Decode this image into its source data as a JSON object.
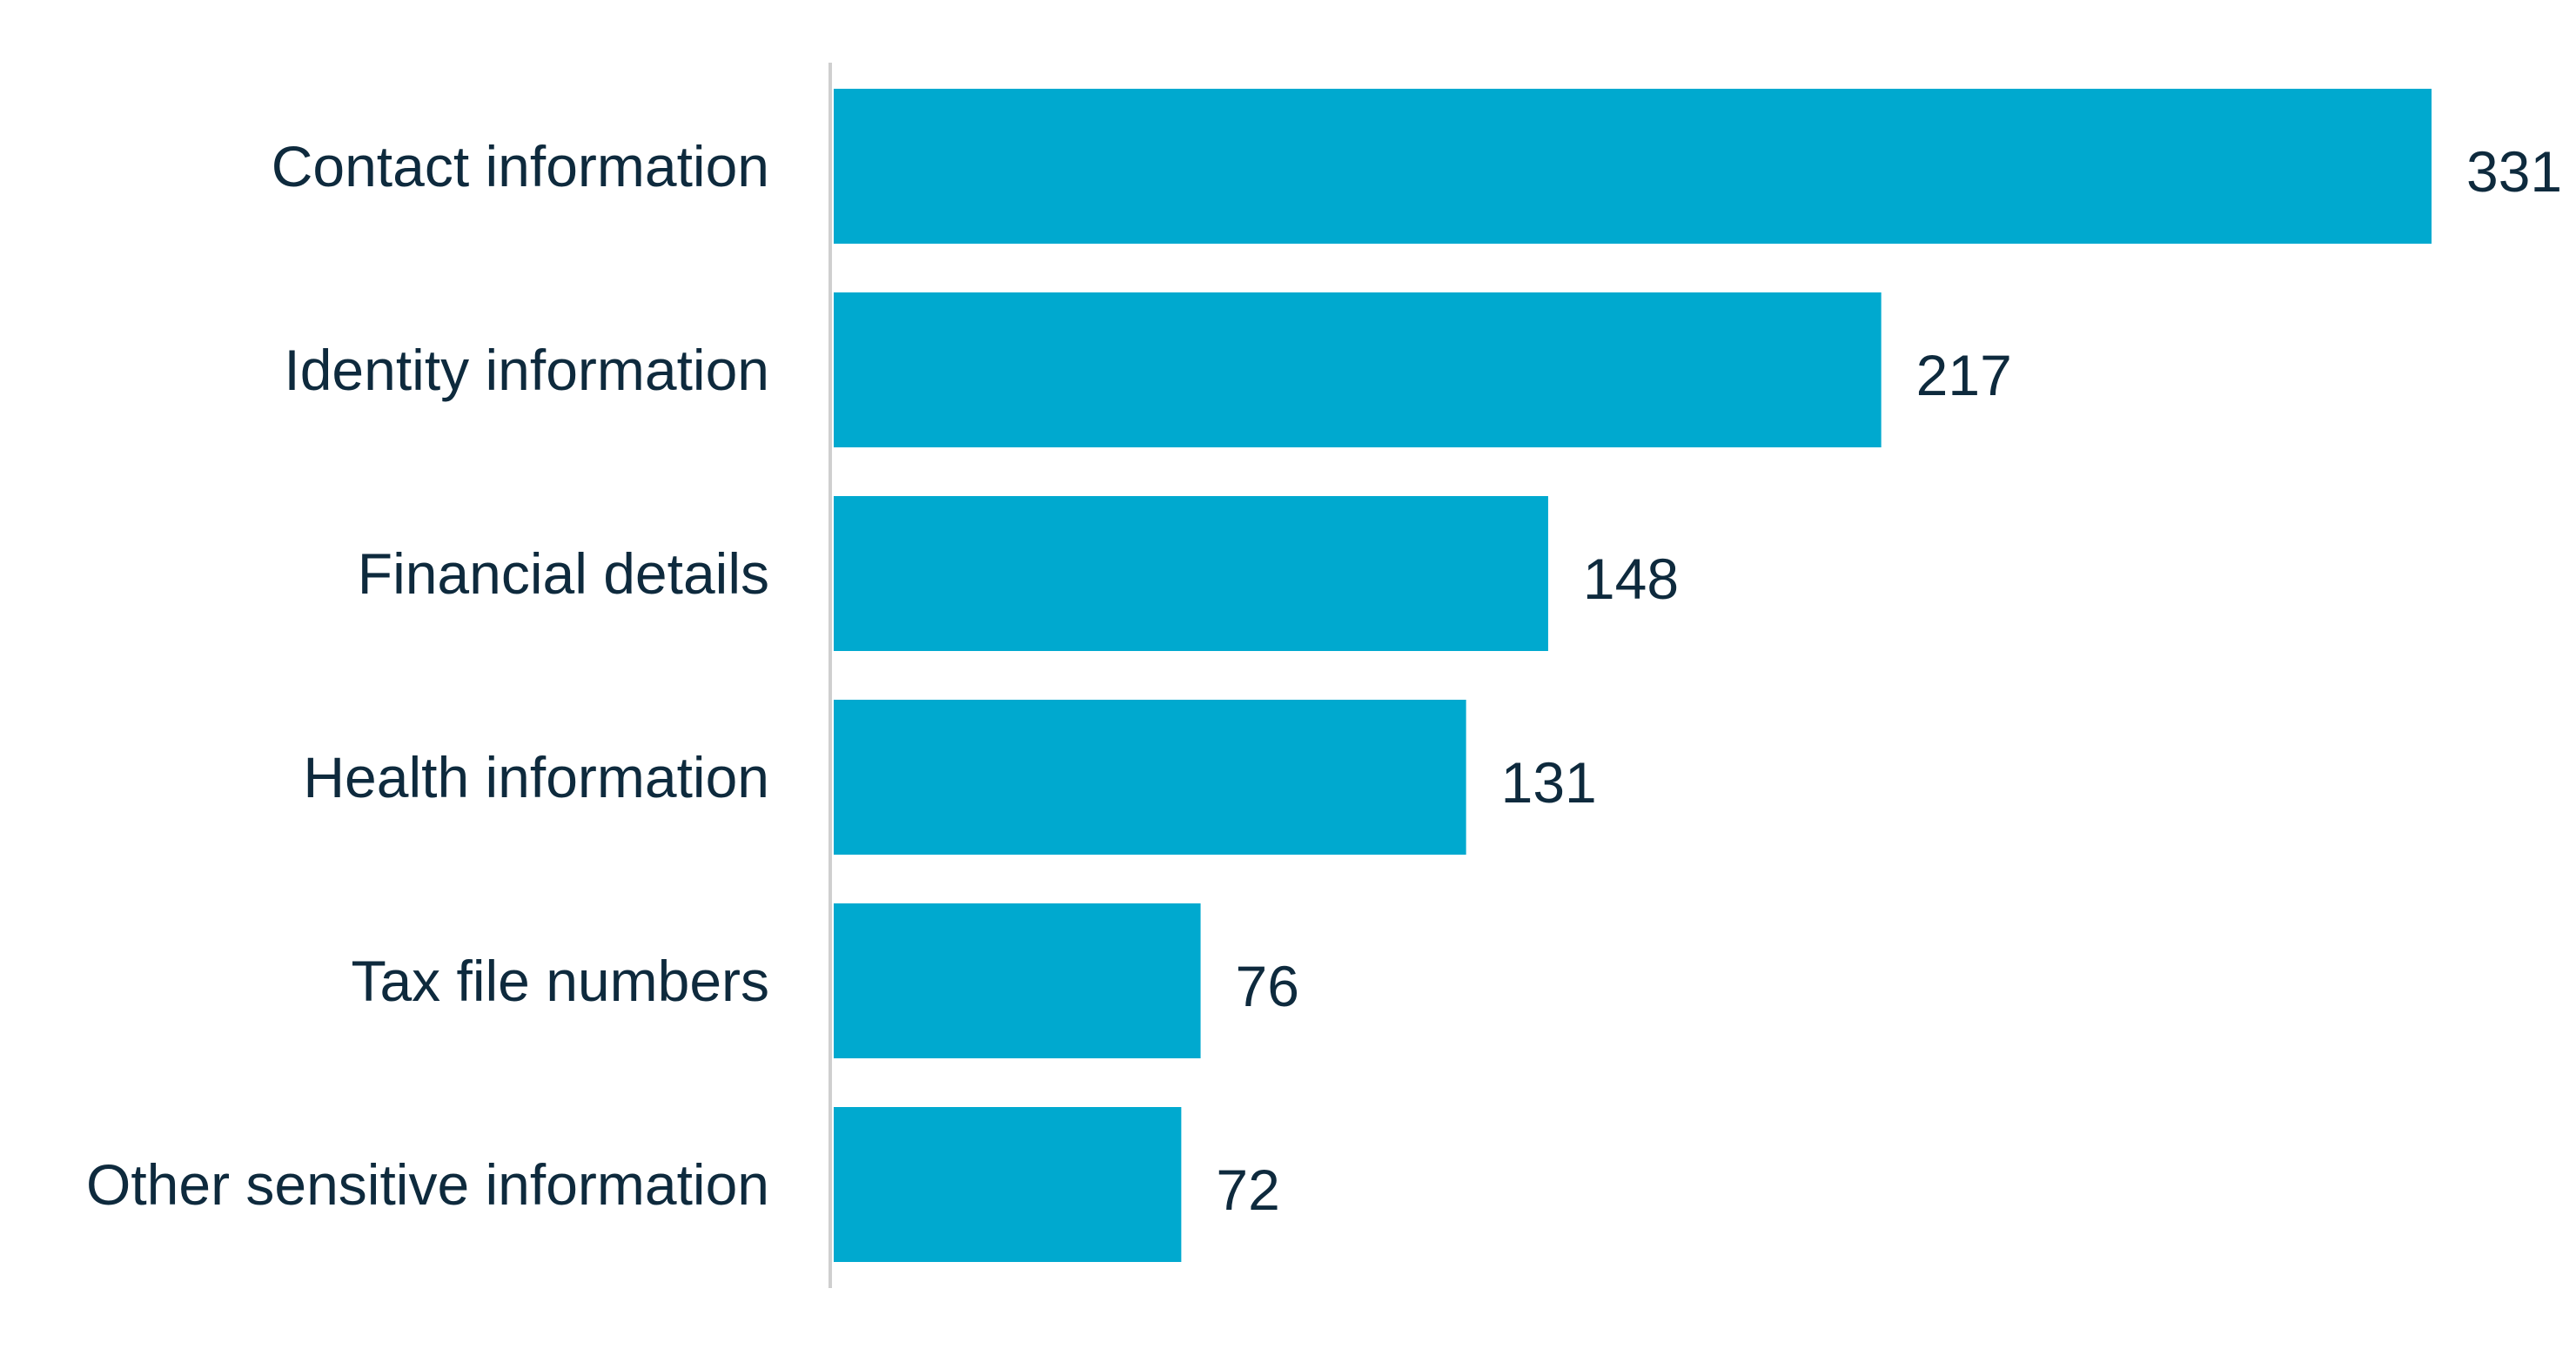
{
  "chart_data": {
    "type": "bar",
    "orientation": "horizontal",
    "categories": [
      "Contact information",
      "Identity information",
      "Financial details",
      "Health information",
      "Tax file numbers",
      "Other sensitive information"
    ],
    "values": [
      331,
      217,
      148,
      131,
      76,
      72
    ],
    "xlim": [
      0,
      331
    ],
    "title": "",
    "xlabel": "",
    "ylabel": "",
    "grid": false,
    "legend": "none",
    "bar_color": "#00a9cf",
    "text_color": "#0e2a3d",
    "axis_color": "#cfcfcf"
  }
}
